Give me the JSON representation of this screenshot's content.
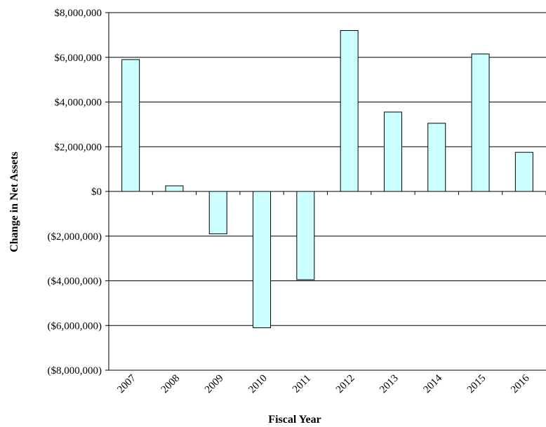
{
  "chart_data": {
    "type": "bar",
    "xlabel": "Fiscal Year",
    "ylabel": "Change in Net Assets",
    "ylim": [
      -8000000,
      8000000
    ],
    "grid": true,
    "bar_color": "#ccffff",
    "y_ticks": [
      8000000,
      6000000,
      4000000,
      2000000,
      0,
      -2000000,
      -4000000,
      -6000000,
      -8000000
    ],
    "y_tick_labels": [
      "$8,000,000",
      "$6,000,000",
      "$4,000,000",
      "$2,000,000",
      "$0",
      "($2,000,000)",
      "($4,000,000)",
      "($6,000,000)",
      "($8,000,000)"
    ],
    "categories": [
      "2007",
      "2008",
      "2009",
      "2010",
      "2011",
      "2012",
      "2013",
      "2014",
      "2015",
      "2016"
    ],
    "values": [
      5900000,
      250000,
      -1900000,
      -6100000,
      -3950000,
      7200000,
      3550000,
      3050000,
      6150000,
      1750000
    ]
  }
}
